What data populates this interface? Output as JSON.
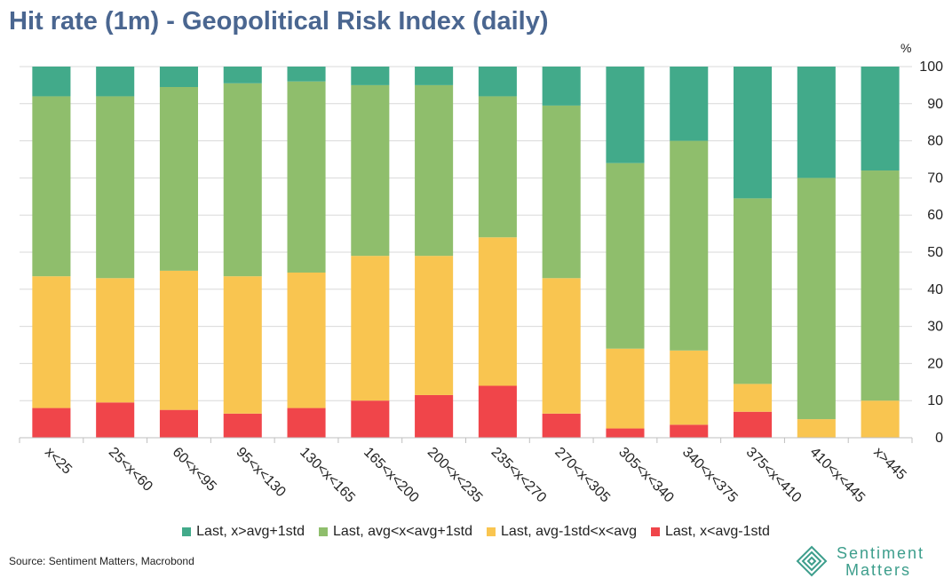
{
  "header": {
    "title": "Hit rate (1m) - Geopolitical Risk Index (daily)",
    "unit": "%"
  },
  "chart_data": {
    "type": "bar",
    "stacked": true,
    "title": "Hit rate (1m) - Geopolitical Risk Index (daily)",
    "ylabel": "%",
    "ylim": [
      0,
      100
    ],
    "yticks": [
      "0",
      "10",
      "20",
      "30",
      "40",
      "50",
      "60",
      "70",
      "80",
      "90",
      "100"
    ],
    "categories": [
      "x<25",
      "25<x<60",
      "60<x<95",
      "95<x<130",
      "130<x<165",
      "165<x<200",
      "200<x<235",
      "235<x<270",
      "270<x<305",
      "305<x<340",
      "340<x<375",
      "375<x<410",
      "410<x<445",
      "x>445"
    ],
    "series": [
      {
        "name": "Last,  x<avg-1std",
        "color": "#f0454a",
        "values": [
          8,
          9.5,
          7.5,
          6.5,
          8,
          10,
          11.5,
          14,
          6.5,
          2.5,
          3.5,
          7,
          0,
          0
        ]
      },
      {
        "name": "Last, avg-1std<x<avg",
        "color": "#f9c550",
        "values": [
          35.5,
          33.5,
          37.5,
          37,
          36.5,
          39,
          37.5,
          40,
          36.5,
          21.5,
          20,
          7.5,
          5,
          10
        ]
      },
      {
        "name": "Last, avg<x<avg+1std",
        "color": "#8fbe6c",
        "values": [
          48.5,
          49,
          49.5,
          52,
          51.5,
          46,
          46,
          38,
          46.5,
          50,
          56.5,
          50,
          65,
          62
        ]
      },
      {
        "name": "Last, x>avg+1std",
        "color": "#42aa8a",
        "values": [
          8,
          8,
          5.5,
          4.5,
          4,
          5,
          5,
          8,
          10.5,
          26,
          20,
          35.5,
          30,
          28
        ]
      }
    ],
    "legend_order": [
      "Last, x>avg+1std",
      "Last, avg<x<avg+1std",
      "Last, avg-1std<x<avg",
      "Last,  x<avg-1std"
    ],
    "legend_position": "bottom"
  },
  "footer": {
    "source": "Source: Sentiment Matters, Macrobond"
  },
  "brand": {
    "line1": "Sentiment",
    "line2": "Matters",
    "color": "#3d9e8c"
  }
}
